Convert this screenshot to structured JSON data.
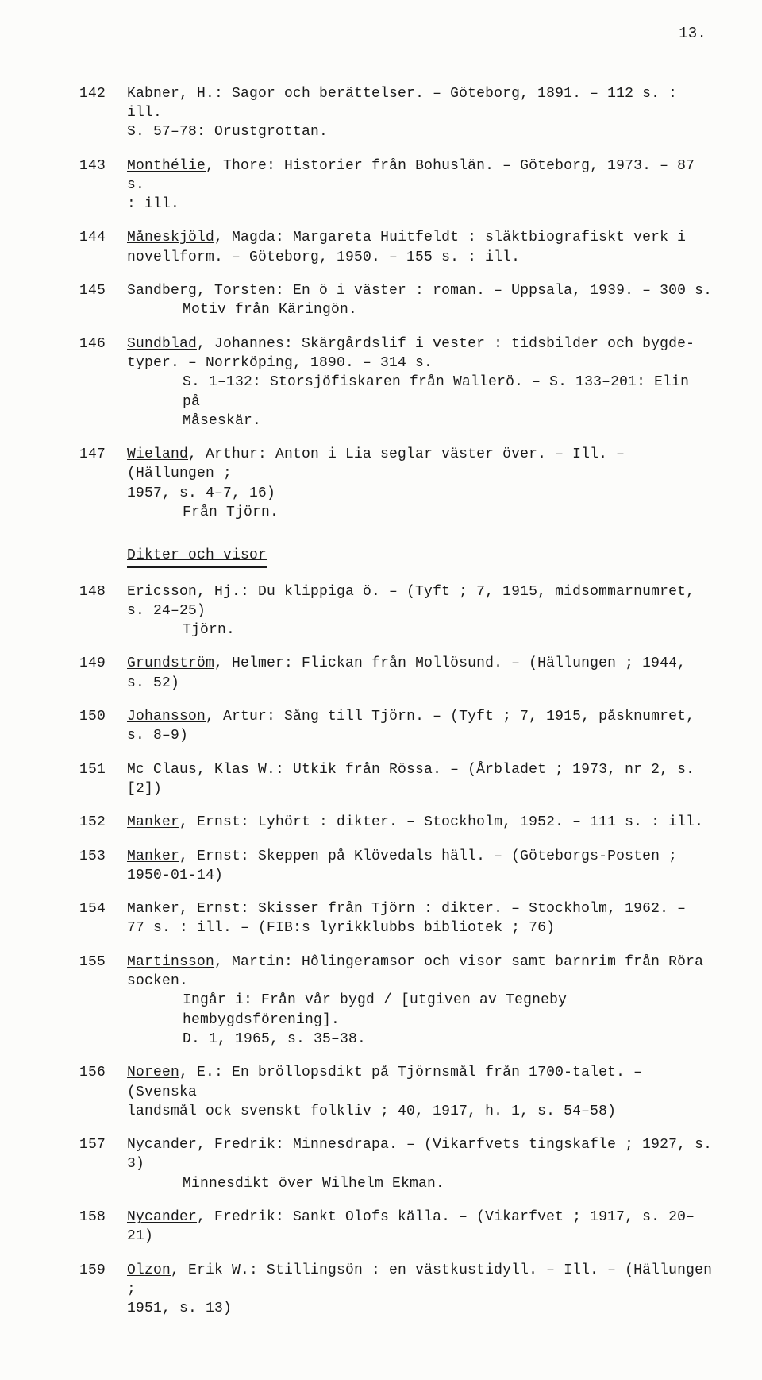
{
  "page_number": "13.",
  "section_heading": "Dikter och visor",
  "entries": [
    {
      "num": "142",
      "author_u": "Kabner",
      "rest": ", H.: Sagor och berättelser. – Göteborg, 1891. – 112 s. : ill.",
      "cont": [
        "S. 57–78: Orustgrottan."
      ]
    },
    {
      "num": "143",
      "author_u": "Monthélie",
      "rest": ", Thore: Historier från Bohuslän. – Göteborg, 1973. – 87 s.",
      "cont": [
        ": ill."
      ]
    },
    {
      "num": "144",
      "author_u": "Måneskjöld",
      "rest": ", Magda: Margareta Huitfeldt : släktbiografiskt verk i",
      "cont": [
        "novellform. – Göteborg, 1950. – 155 s. : ill."
      ]
    },
    {
      "num": "145",
      "author_u": "Sandberg",
      "rest": ", Torsten: En ö i väster : roman. – Uppsala, 1939. – 300 s.",
      "cont_indent": [
        "Motiv från Käringön."
      ]
    },
    {
      "num": "146",
      "author_u": "Sundblad",
      "rest": ", Johannes: Skärgårdslif i vester : tidsbilder och bygde-",
      "cont": [
        "typer. – Norrköping, 1890. – 314 s."
      ],
      "cont_indent": [
        "S. 1–132: Storsjöfiskaren från Wallerö. – S. 133–201: Elin på",
        "Måseskär."
      ]
    },
    {
      "num": "147",
      "author_u": "Wieland",
      "rest": ", Arthur: Anton i Lia seglar väster över. – Ill. – (Hällungen ;",
      "cont": [
        "1957, s. 4–7, 16)"
      ],
      "cont_indent": [
        "Från Tjörn."
      ]
    }
  ],
  "entries2": [
    {
      "num": "148",
      "author_u": "Ericsson",
      "rest": ", Hj.: Du klippiga ö. – (Tyft ; 7, 1915, midsommarnumret,",
      "cont": [
        "s. 24–25)"
      ],
      "cont_indent": [
        "Tjörn."
      ]
    },
    {
      "num": "149",
      "author_u": "Grundström",
      "rest": ", Helmer: Flickan från Mollösund. – (Hällungen ; 1944,",
      "cont": [
        "s. 52)"
      ]
    },
    {
      "num": "150",
      "author_u": "Johansson",
      "rest": ", Artur: Sång till Tjörn. – (Tyft ; 7, 1915, påsknumret,",
      "cont": [
        "s. 8–9)"
      ]
    },
    {
      "num": "151",
      "author_u": "Mc Claus",
      "rest": ", Klas W.: Utkik från Rössa. – (Årbladet ; 1973, nr 2, s. [2])"
    },
    {
      "num": "152",
      "author_u": "Manker",
      "rest": ", Ernst: Lyhört : dikter. – Stockholm, 1952. – 111 s. : ill."
    },
    {
      "num": "153",
      "author_u": "Manker",
      "rest": ", Ernst: Skeppen på Klövedals häll. – (Göteborgs-Posten ;",
      "cont": [
        "1950-01-14)"
      ]
    },
    {
      "num": "154",
      "author_u": "Manker",
      "rest": ", Ernst: Skisser från Tjörn : dikter. – Stockholm, 1962. –",
      "cont": [
        "77 s. : ill. – (FIB:s lyrikklubbs bibliotek ; 76)"
      ]
    },
    {
      "num": "155",
      "author_u": "Martinsson",
      "rest": ", Martin: Hôlingeramsor och visor samt barnrim från Röra",
      "cont": [
        "socken."
      ],
      "cont_indent": [
        "Ingår i: Från vår bygd / [utgiven av Tegneby hembygdsförening].",
        "D. 1, 1965, s. 35–38."
      ]
    },
    {
      "num": "156",
      "author_u": "Noreen",
      "rest": ", E.: En bröllopsdikt på Tjörnsmål från 1700-talet. – (Svenska",
      "cont": [
        "landsmål ock svenskt folkliv ; 40, 1917, h. 1, s. 54–58)"
      ]
    },
    {
      "num": "157",
      "author_u": "Nycander",
      "rest": ", Fredrik: Minnesdrapa. – (Vikarfvets tingskafle ; 1927, s. 3)",
      "cont_indent": [
        "Minnesdikt över Wilhelm Ekman."
      ]
    },
    {
      "num": "158",
      "author_u": "Nycander",
      "rest": ", Fredrik: Sankt Olofs källa. – (Vikarfvet ; 1917, s. 20–21)"
    },
    {
      "num": "159",
      "author_u": "Olzon",
      "rest": ", Erik W.: Stillingsön : en västkustidyll. – Ill. – (Hällungen ;",
      "cont": [
        "1951, s. 13)"
      ]
    }
  ]
}
